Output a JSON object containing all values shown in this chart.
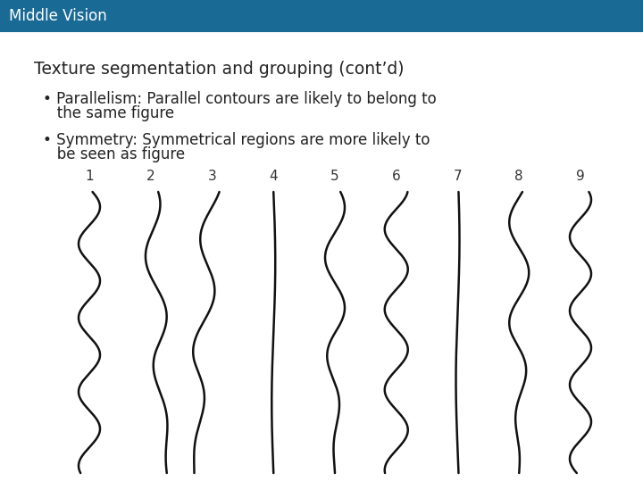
{
  "header_bg_color": "#1a6a96",
  "header_text": "Middle Vision",
  "header_text_color": "#ffffff",
  "bg_color": "#ffffff",
  "title_text": "Texture segmentation and grouping (cont’d)",
  "bullet1_line1": "• Parallelism: Parallel contours are likely to belong to",
  "bullet1_line2": "   the same figure",
  "bullet2_line1": "• Symmetry: Symmetrical regions are more likely to",
  "bullet2_line2": "   be seen as figure",
  "line_color": "#111111",
  "line_width": 1.8,
  "n_lines": 9,
  "line_labels": [
    "1",
    "2",
    "3",
    "4",
    "5",
    "6",
    "7",
    "8",
    "9"
  ]
}
